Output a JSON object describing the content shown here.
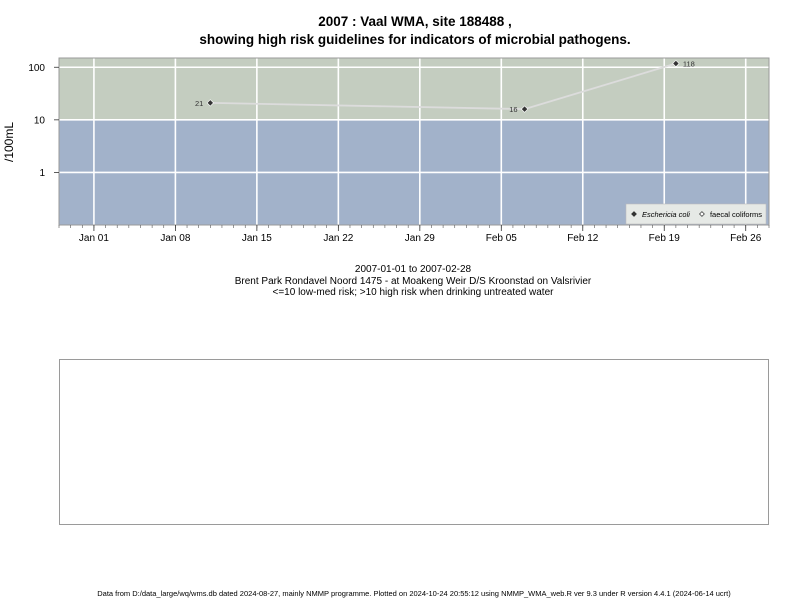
{
  "title_line1": "2007 : Vaal WMA, site 188488 ,",
  "title_line2": "showing high risk guidelines for indicators of microbial pathogens.",
  "caption": {
    "date_range": "2007-01-01 to 2007-02-28",
    "site": "Brent Park Rondavel Noord 1475 - at Moakeng Weir D/S Kroonstad on Valsrivier",
    "risk_note": "<=10 low-med risk; >10 high risk when drinking untreated water"
  },
  "footer": "Data from D:/data_large/wq/wms.db dated 2024-08-27, mainly NMMP programme. Plotted on 2024-10-24 20:55:12 using NMMP_WMA_web.R ver 9.3 under R version 4.4.1 (2024-06-14 ucrt)",
  "colors": {
    "high_risk_band": "#c4cdc0",
    "low_risk_band": "#a2b2ca",
    "grid": "#ffffff",
    "series_line": "#dcdcdc",
    "point": "#333333"
  },
  "chart_data": {
    "type": "line",
    "ylabel": "/100mL",
    "y_scale": "log10",
    "ylim": [
      0.1,
      150
    ],
    "y_ticks": [
      1,
      10,
      100
    ],
    "y_tick_labels": [
      "1",
      "10",
      "100"
    ],
    "xlim": [
      "2006-12-29",
      "2007-02-28"
    ],
    "x_ticks": [
      "2007-01-01",
      "2007-01-08",
      "2007-01-15",
      "2007-01-22",
      "2007-01-29",
      "2007-02-05",
      "2007-02-12",
      "2007-02-19",
      "2007-02-26"
    ],
    "x_tick_labels": [
      "Jan 01",
      "Jan 08",
      "Jan 15",
      "Jan 22",
      "Jan 29",
      "Feb 05",
      "Feb 12",
      "Feb 19",
      "Feb 26"
    ],
    "threshold": 10,
    "bands": [
      {
        "from": 10,
        "to": 150,
        "risk": "high"
      },
      {
        "from": 0.1,
        "to": 10,
        "risk": "low-med"
      }
    ],
    "series": [
      {
        "name": "Eschericia coli",
        "marker": "filled-diamond",
        "points": [
          {
            "x": "2007-01-11",
            "y": 21,
            "label": "21"
          },
          {
            "x": "2007-02-07",
            "y": 16,
            "label": "16"
          },
          {
            "x": "2007-02-20",
            "y": 118,
            "label": "118"
          }
        ]
      }
    ],
    "legend": {
      "position": "bottom-right",
      "entries": [
        {
          "label": "Eschericia coli",
          "marker": "filled-diamond",
          "italic": true
        },
        {
          "label": "faecal coliforms",
          "marker": "open-diamond",
          "italic": false
        }
      ]
    }
  }
}
